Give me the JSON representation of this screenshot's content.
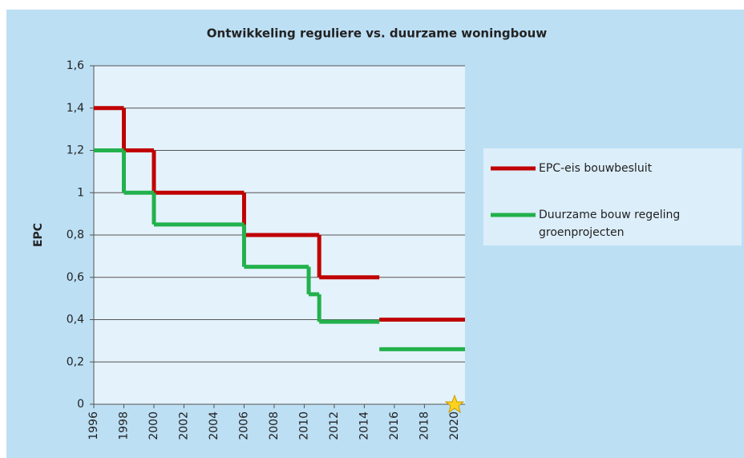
{
  "chart_data": {
    "type": "step-line",
    "title": "Ontwikkeling reguliere vs. duurzame woningbouw",
    "ylabel": "EPC",
    "xlim": [
      1996,
      2020.7
    ],
    "ylim": [
      0,
      1.6
    ],
    "xticks": [
      1996,
      1998,
      2000,
      2002,
      2004,
      2006,
      2008,
      2010,
      2012,
      2014,
      2016,
      2018,
      2020
    ],
    "yticks": [
      0,
      {
        "value": 0.2,
        "label": "0,2"
      },
      {
        "value": 0.4,
        "label": "0,4"
      },
      {
        "value": 0.6,
        "label": "0,6"
      },
      {
        "value": 0.8,
        "label": "0,8"
      },
      1,
      {
        "value": 1.2,
        "label": "1,2"
      },
      {
        "value": 1.4,
        "label": "1,4"
      },
      {
        "value": 1.6,
        "label": "1,6"
      }
    ],
    "grid": true,
    "legend": "right",
    "series": [
      {
        "name": "EPC-eis bouwbesluit",
        "color": "#c00000",
        "x": [
          1996,
          1998,
          2000,
          2006,
          2011,
          2015,
          null,
          2015,
          2020.7
        ],
        "values": [
          1.4,
          1.2,
          1.0,
          0.8,
          0.6,
          0.6,
          null,
          0.4,
          0.4
        ]
      },
      {
        "name": "Duurzame bouw regeling groenprojecten",
        "color": "#22b14c",
        "x": [
          1996,
          1998,
          2000,
          2006,
          2010.3,
          2011,
          2015,
          null,
          2015,
          2020.7
        ],
        "values": [
          1.2,
          1.0,
          0.85,
          0.65,
          0.52,
          0.39,
          0.39,
          null,
          0.26,
          0.26
        ]
      }
    ]
  }
}
